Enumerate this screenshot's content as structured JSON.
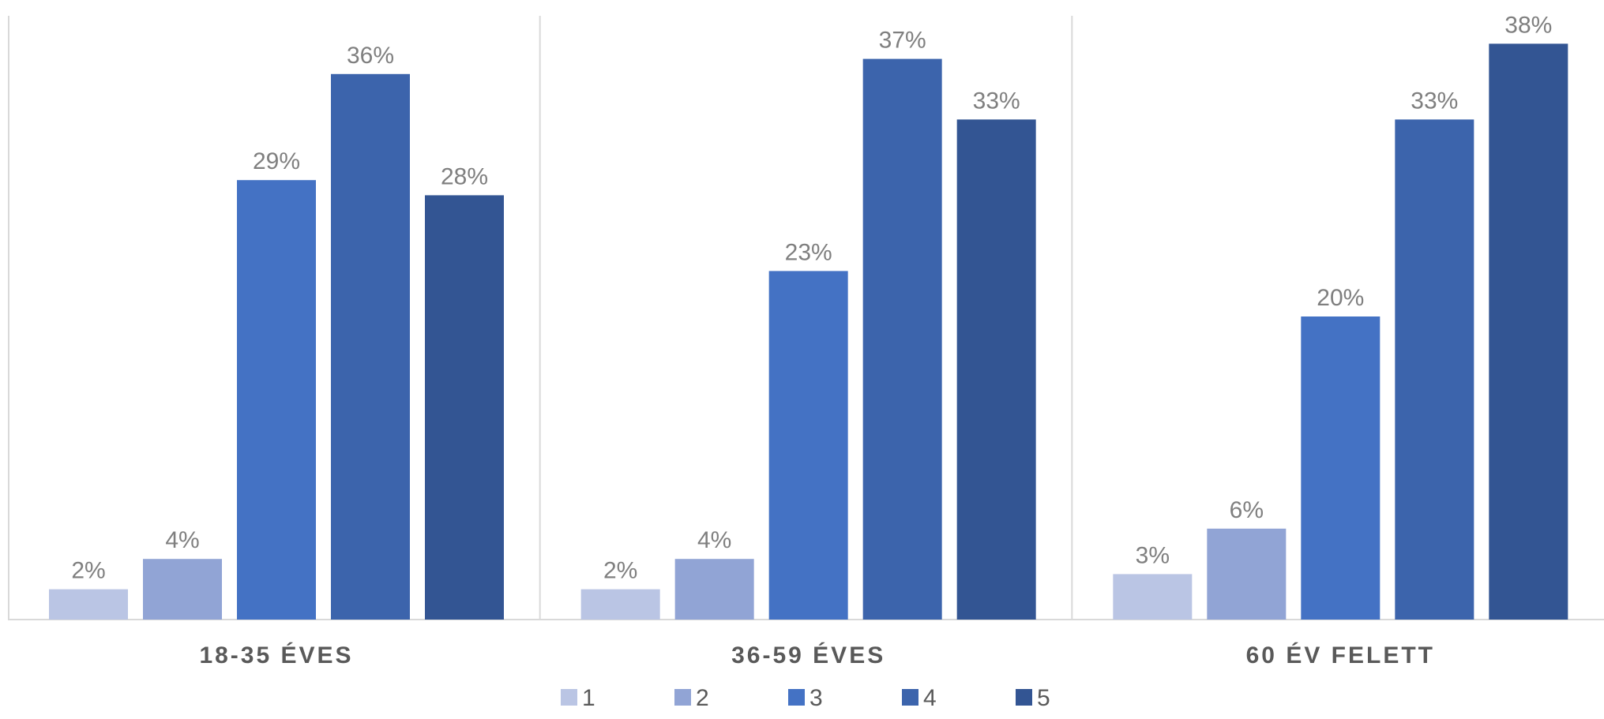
{
  "chart_data": {
    "type": "bar",
    "categories": [
      "18-35 ÉVES",
      "36-59 ÉVES",
      "60 ÉV FELETT"
    ],
    "series": [
      {
        "name": "1",
        "values": [
          2,
          2,
          3
        ],
        "labels": [
          "2%",
          "2%",
          "3%"
        ],
        "color": "#bac5e4"
      },
      {
        "name": "2",
        "values": [
          4,
          4,
          6
        ],
        "labels": [
          "4%",
          "4%",
          "6%"
        ],
        "color": "#91a4d5"
      },
      {
        "name": "3",
        "values": [
          29,
          23,
          20
        ],
        "labels": [
          "29%",
          "23%",
          "20%"
        ],
        "color": "#4472c4"
      },
      {
        "name": "4",
        "values": [
          36,
          37,
          33
        ],
        "labels": [
          "36%",
          "37%",
          "33%"
        ],
        "color": "#3c64ac"
      },
      {
        "name": "5",
        "values": [
          28,
          33,
          38
        ],
        "labels": [
          "28%",
          "33%",
          "38%"
        ],
        "color": "#335593"
      }
    ],
    "ylim": [
      0,
      39
    ],
    "grid": false,
    "legend_position": "bottom",
    "value_unit": "%"
  }
}
